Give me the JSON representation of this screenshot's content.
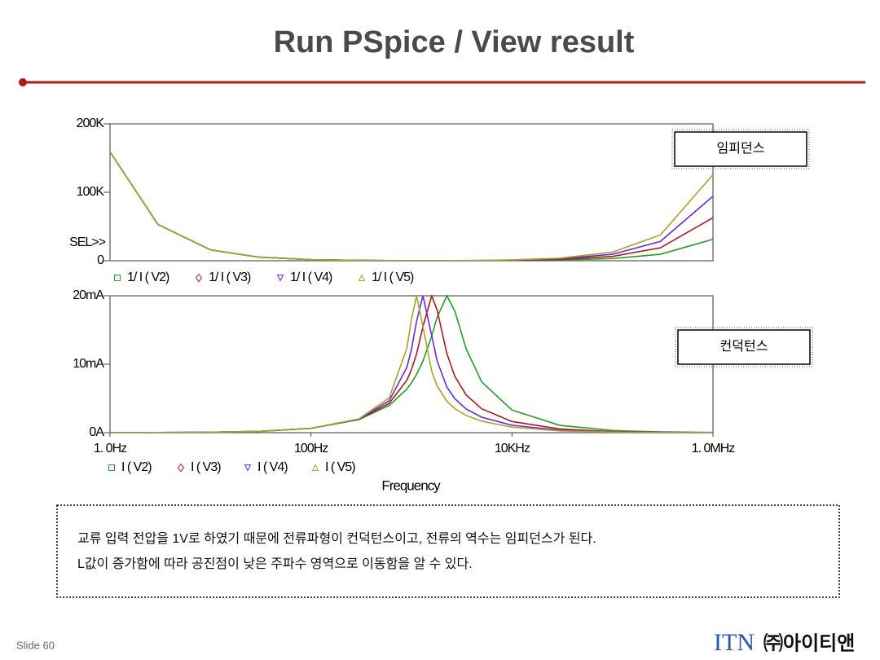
{
  "header": {
    "title": "Run PSpice / View result"
  },
  "chart_data": [
    {
      "type": "line",
      "xscale": "log",
      "xlim": [
        1,
        1000000
      ],
      "ylim": [
        0,
        200000
      ],
      "yticks": [
        0,
        {
          "value": 100000,
          "label": "100K"
        },
        {
          "value": 200000,
          "label": "200K"
        }
      ],
      "cursor_label": "SEL>>",
      "annotation": "임피던스",
      "x": [
        1,
        3,
        10,
        30,
        100,
        300,
        600,
        900,
        1000,
        1125,
        1300,
        1590,
        1800,
        2250,
        2700,
        3500,
        5000,
        10000,
        30000,
        100000,
        300000,
        1000000
      ],
      "series": [
        {
          "name": "1/ I ( V2)",
          "color": "#22a022",
          "values": [
            159155,
            53052,
            15915,
            5304.5,
            1589.2,
            523.5,
            251.4,
            156.8,
            137.2,
            117.3,
            95.7,
            70.8,
            59.3,
            50.0,
            56.3,
            81.6,
            134.9,
            302.4,
            938.5,
            3140.4,
            9424.4,
            31416
          ]
        },
        {
          "name": "1/ I ( V3)",
          "color": "#b01818",
          "values": [
            159155,
            53052,
            15915,
            5303.5,
            1586.1,
            514.1,
            233.0,
            130.3,
            108.5,
            86.7,
            64.5,
            50.0,
            55.8,
            86.5,
            121.5,
            181.5,
            286.7,
            614.4,
            1880.4,
            6281.6,
            18850,
            62832
          ]
        },
        {
          "name": "1/ I ( V4)",
          "color": "#6a28e0",
          "values": [
            159155,
            53052,
            15915,
            5302.6,
            1582.9,
            504.7,
            214.6,
            104.7,
            81.9,
            61.3,
            50.0,
            70.5,
            95.4,
            149.9,
            201.8,
            288.8,
            442.2,
            927.9,
            2822.5,
            9423.3,
            28273,
            94248
          ]
        },
        {
          "name": "1/ I ( V5)",
          "color": "#a8a424",
          "values": [
            159155,
            53052,
            15914,
            5301.7,
            1579.8,
            495.3,
            196.3,
            81.0,
            60.2,
            50.0,
            64.6,
            111.5,
            146.6,
            217.8,
            284.8,
            397.5,
            598.6,
            1241.7,
            3764.9,
            12564,
            37698,
            125664
          ]
        }
      ]
    },
    {
      "type": "line",
      "xscale": "log",
      "xlim": [
        1,
        1000000
      ],
      "ylim": [
        0,
        0.02
      ],
      "yticks": [
        {
          "value": 0,
          "label": "0A"
        },
        {
          "value": 0.01,
          "label": "10mA"
        },
        {
          "value": 0.02,
          "label": "20mA"
        }
      ],
      "xticks": [
        {
          "value": 1,
          "label": "1. 0Hz"
        },
        {
          "value": 100,
          "label": "100Hz"
        },
        {
          "value": 10000,
          "label": "10KHz"
        },
        {
          "value": 1000000,
          "label": "1. 0MHz"
        }
      ],
      "xlabel": "Frequency",
      "annotation": "컨덕턴스",
      "x": [
        1,
        3,
        10,
        30,
        100,
        300,
        600,
        900,
        1000,
        1125,
        1300,
        1590,
        1800,
        2250,
        2700,
        3500,
        5000,
        10000,
        30000,
        100000,
        300000,
        1000000
      ],
      "series": [
        {
          "name": "I ( V2)",
          "color": "#22a022",
          "values": [
            6.28e-06,
            1.885e-05,
            6.28e-05,
            0.0001885,
            0.000629,
            0.00191,
            0.00398,
            0.00638,
            0.00729,
            0.00853,
            0.01045,
            0.01412,
            0.01686,
            0.02,
            0.01776,
            0.01225,
            0.00741,
            0.00331,
            0.001066,
            0.000318,
            0.000106,
            3.18e-05
          ]
        },
        {
          "name": "I ( V3)",
          "color": "#b01818",
          "values": [
            6.28e-06,
            1.885e-05,
            6.28e-05,
            0.0001886,
            0.00063,
            0.001945,
            0.00429,
            0.00767,
            0.00922,
            0.01153,
            0.0155,
            0.02,
            0.01792,
            0.01156,
            0.00823,
            0.00551,
            0.00349,
            0.001628,
            0.000532,
            0.000159,
            5.31e-05,
            1.59e-05
          ]
        },
        {
          "name": "I ( V4)",
          "color": "#6a28e0",
          "values": [
            6.28e-06,
            1.885e-05,
            6.28e-05,
            0.0001886,
            0.000632,
            0.00198,
            0.00466,
            0.00955,
            0.01221,
            0.01631,
            0.02,
            0.01418,
            0.01048,
            0.00667,
            0.00496,
            0.00346,
            0.00226,
            0.001078,
            0.000354,
            0.000106,
            3.54e-05,
            1.06e-05
          ]
        },
        {
          "name": "I ( V5)",
          "color": "#a8a424",
          "values": [
            6.28e-06,
            1.885e-05,
            6.28e-05,
            0.0001886,
            0.000633,
            0.00202,
            0.00509,
            0.01235,
            0.01661,
            0.02,
            0.01548,
            0.00897,
            0.00682,
            0.00459,
            0.00351,
            0.00252,
            0.00167,
            0.000805,
            0.000266,
            7.96e-05,
            2.65e-05,
            7.96e-06
          ]
        }
      ]
    }
  ],
  "note": {
    "lines": [
      "교류 입력 전압을 1V로 하였기 때문에 전류파형이 컨덕턴스이고, 전류의 역수는 임피던스가 된다.",
      "L값이 증가함에 따라 공진점이 낮은 주파수 영역으로 이동함을 알 수 있다."
    ]
  },
  "footer": {
    "slide": "Slide 60",
    "logo_latin": "ITN",
    "logo_korean": "㈜아이티앤"
  }
}
